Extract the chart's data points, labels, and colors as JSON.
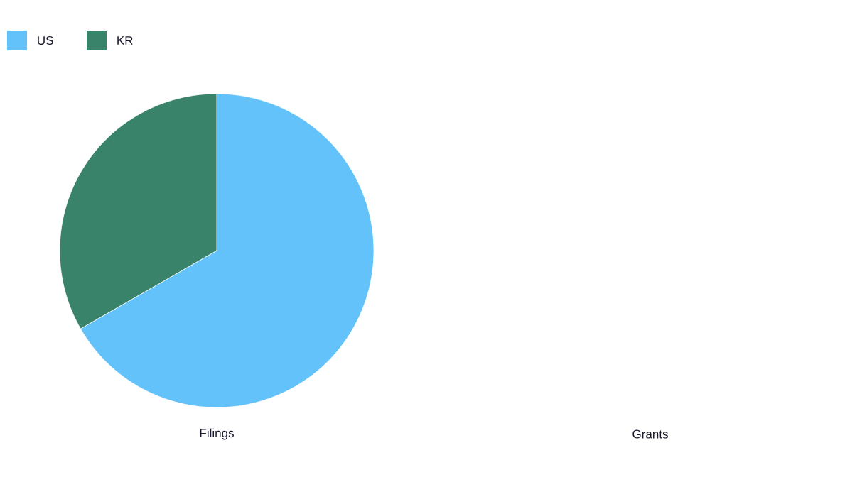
{
  "chart_data": {
    "type": "pie",
    "xlabel": "Filings",
    "categories": [
      "US",
      "KR"
    ],
    "values": [
      66.7,
      33.3
    ],
    "colors": [
      "#62c2f9",
      "#3a836b"
    ],
    "legend": "top left",
    "annotations": [
      "Grants"
    ]
  }
}
